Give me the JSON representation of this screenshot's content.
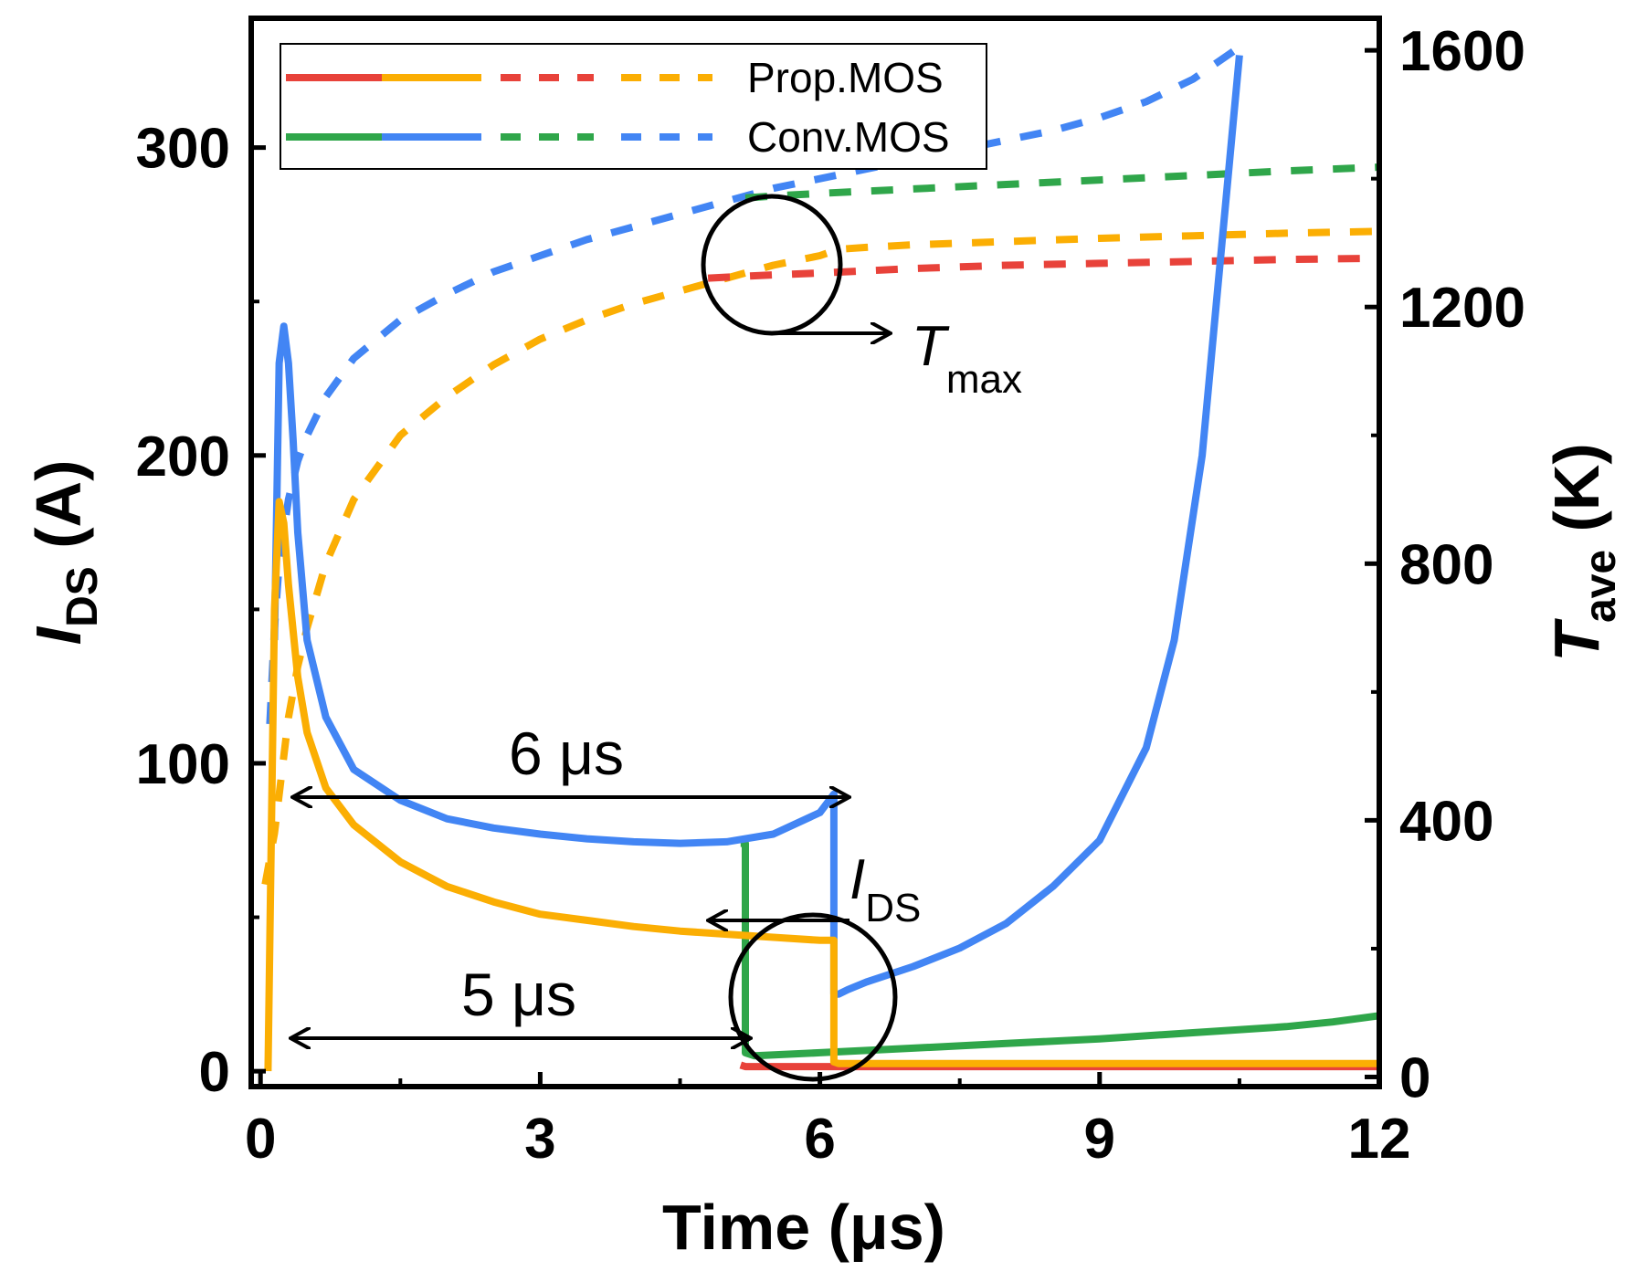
{
  "chart_data": {
    "type": "line",
    "title": "",
    "xlabel": "Time (μs)",
    "ylabel_left": {
      "main": "I",
      "sub": "DS",
      "unit": " (A)"
    },
    "ylabel_right": {
      "main": "T",
      "sub": "ave",
      "unit": " (K)"
    },
    "xlim": [
      -0.1,
      12
    ],
    "ylim_left": [
      -5,
      342
    ],
    "ylim_right": [
      -15,
      1650
    ],
    "xticks": [
      0,
      3,
      6,
      9,
      12
    ],
    "yticks_left": [
      0,
      100,
      200,
      300
    ],
    "yticks_right": [
      0,
      400,
      800,
      1200,
      1600
    ],
    "colors": {
      "prop_red": "#e8423a",
      "prop_orange": "#fbae03",
      "conv_green": "#2fa64a",
      "conv_blue": "#4285f4"
    },
    "legend": {
      "position": "top-left",
      "entries": [
        {
          "label": "Prop.MOS",
          "colors": [
            "#e8423a",
            "#fbae03",
            "#e8423a",
            "#fbae03"
          ]
        },
        {
          "label": "Conv.MOS",
          "colors": [
            "#2fa64a",
            "#4285f4",
            "#2fa64a",
            "#4285f4"
          ]
        }
      ]
    },
    "series": [
      {
        "name": "Prop.MOS I_DS (5 μs)",
        "axis": "left",
        "style": "solid",
        "color": "#e8423a",
        "x": [
          5.15,
          5.2,
          5.3,
          6,
          7,
          8,
          9,
          10,
          11,
          12
        ],
        "y": [
          2,
          1.5,
          1.5,
          1.5,
          1.5,
          1.5,
          1.5,
          1.5,
          1.5,
          1.5
        ]
      },
      {
        "name": "Conv.MOS I_DS (5 μs)",
        "axis": "left",
        "style": "solid",
        "color": "#2fa64a",
        "x": [
          5.15,
          5.2,
          5.2,
          5.3,
          6,
          7,
          8,
          9,
          10,
          11,
          11.5,
          12
        ],
        "y": [
          74,
          74,
          6,
          5,
          6,
          7.5,
          9,
          10.5,
          12.5,
          14.5,
          16,
          18
        ]
      },
      {
        "name": "Prop.MOS I_DS (6 μs)",
        "axis": "left",
        "style": "solid",
        "color": "#fbae03",
        "x": [
          0.08,
          0.15,
          0.2,
          0.25,
          0.3,
          0.4,
          0.5,
          0.7,
          1,
          1.5,
          2,
          2.5,
          3,
          3.5,
          4,
          4.5,
          5,
          5.5,
          6,
          6.15,
          6.15,
          6.2,
          6.3,
          7,
          8,
          9,
          10,
          11,
          12
        ],
        "y": [
          0,
          150,
          185,
          178,
          158,
          128,
          110,
          92,
          80,
          68,
          60,
          55,
          51,
          49,
          47,
          45.5,
          44.5,
          43.5,
          42.5,
          42.5,
          3,
          2.5,
          2.5,
          2.5,
          2.5,
          2.5,
          2.5,
          2.5,
          2.5
        ]
      },
      {
        "name": "Conv.MOS I_DS (6 μs)",
        "axis": "left",
        "style": "solid",
        "color": "#4285f4",
        "x": [
          0.15,
          0.2,
          0.25,
          0.3,
          0.35,
          0.4,
          0.5,
          0.7,
          1,
          1.5,
          2,
          2.5,
          3,
          3.5,
          4,
          4.5,
          5,
          5.5,
          6,
          6.15,
          6.15,
          6.2,
          6.3,
          6.5,
          7,
          7.5,
          8,
          8.5,
          9,
          9.5,
          9.8,
          10.1,
          10.3,
          10.5
        ],
        "y": [
          140,
          230,
          242,
          230,
          205,
          175,
          140,
          115,
          98,
          88,
          82,
          79,
          77,
          75.5,
          74.5,
          74,
          74.5,
          77,
          84,
          90,
          25,
          25,
          26.5,
          29,
          34,
          40,
          48,
          60,
          75,
          105,
          140,
          200,
          265,
          330
        ]
      },
      {
        "name": "Prop.MOS T_ave (5 μs)",
        "axis": "right",
        "style": "dashed",
        "color": "#e8423a",
        "x": [
          4.8,
          5.2,
          5.5,
          6,
          7,
          8,
          9,
          10,
          11,
          12
        ],
        "y": [
          1245,
          1248,
          1250,
          1253,
          1260,
          1265,
          1268,
          1271,
          1274,
          1276
        ]
      },
      {
        "name": "Conv.MOS T_ave (5 μs)",
        "axis": "right",
        "style": "dashed",
        "color": "#2fa64a",
        "x": [
          5.2,
          5.5,
          6,
          7,
          8,
          9,
          10,
          11,
          12
        ],
        "y": [
          1370,
          1373,
          1377,
          1384,
          1391,
          1398,
          1405,
          1412,
          1418
        ]
      },
      {
        "name": "Prop.MOS T_ave (6 μs)",
        "axis": "right",
        "style": "dashed",
        "color": "#fbae03",
        "x": [
          0.05,
          0.1,
          0.15,
          0.2,
          0.3,
          0.4,
          0.5,
          0.7,
          1,
          1.5,
          2,
          2.5,
          3,
          3.5,
          4,
          4.5,
          5,
          5.5,
          6,
          6.2,
          6.5,
          7,
          8,
          9,
          10,
          11,
          12
        ],
        "y": [
          300,
          340,
          380,
          440,
          560,
          640,
          700,
          800,
          900,
          1000,
          1060,
          1110,
          1150,
          1180,
          1205,
          1225,
          1245,
          1265,
          1280,
          1290,
          1293,
          1297,
          1302,
          1307,
          1311,
          1315,
          1318
        ]
      },
      {
        "name": "Conv.MOS T_ave (6 μs)",
        "axis": "right",
        "style": "dashed",
        "color": "#4285f4",
        "x": [
          0.1,
          0.15,
          0.2,
          0.3,
          0.4,
          0.5,
          0.7,
          1,
          1.5,
          2,
          2.5,
          3,
          3.5,
          4,
          4.5,
          5,
          5.5,
          6,
          6.5,
          7,
          7.5,
          8,
          8.5,
          9,
          9.5,
          10,
          10.5
        ],
        "y": [
          550,
          700,
          800,
          900,
          960,
          1000,
          1060,
          1120,
          1180,
          1220,
          1255,
          1280,
          1305,
          1325,
          1345,
          1365,
          1385,
          1400,
          1415,
          1430,
          1445,
          1460,
          1475,
          1495,
          1520,
          1555,
          1605
        ]
      }
    ],
    "annotations": {
      "six_us": "6 μs",
      "five_us": "5 μs",
      "tmax": {
        "main": "T",
        "sub": "max"
      },
      "ids": {
        "main": "I",
        "sub": "DS"
      }
    }
  }
}
